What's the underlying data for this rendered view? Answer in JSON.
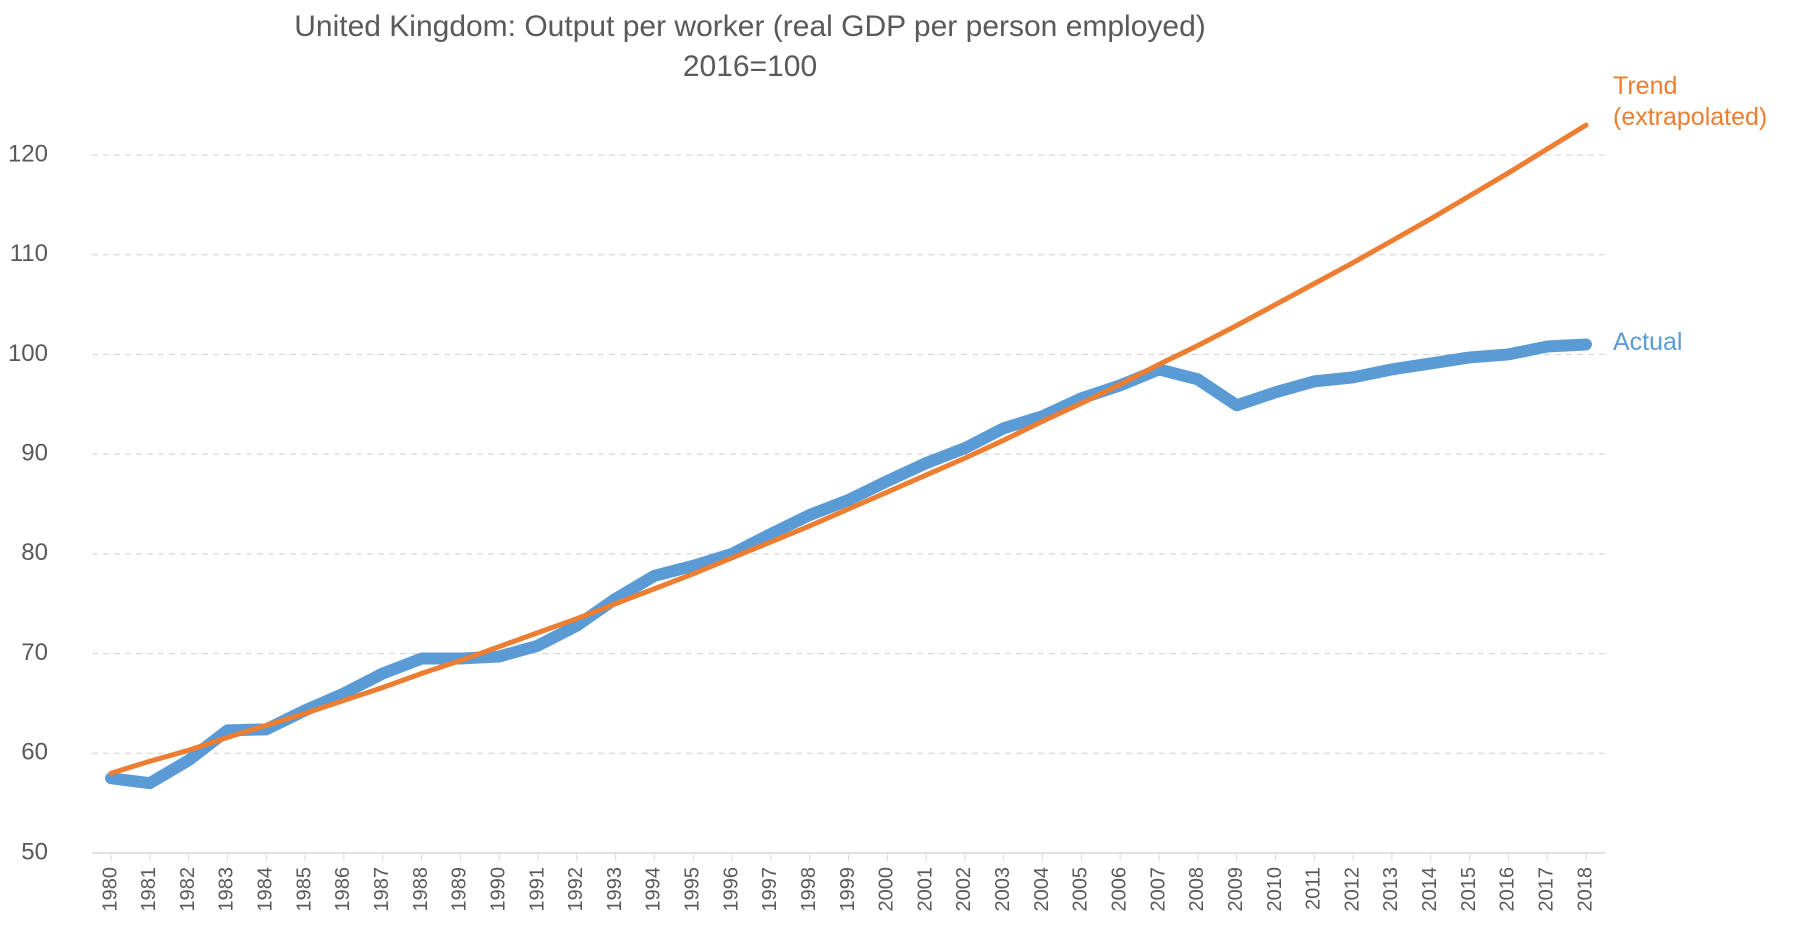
{
  "chart_data": {
    "type": "line",
    "title": "United Kingdom: Output per worker (real GDP per person employed)",
    "subtitle": "2016=100",
    "categories": [
      "1980",
      "1981",
      "1982",
      "1983",
      "1984",
      "1985",
      "1986",
      "1987",
      "1988",
      "1989",
      "1990",
      "1991",
      "1992",
      "1993",
      "1994",
      "1995",
      "1996",
      "1997",
      "1998",
      "1999",
      "2000",
      "2001",
      "2002",
      "2003",
      "2004",
      "2005",
      "2006",
      "2007",
      "2008",
      "2009",
      "2010",
      "2011",
      "2012",
      "2013",
      "2014",
      "2015",
      "2016",
      "2017",
      "2018"
    ],
    "series": [
      {
        "name": "Actual",
        "color": "#5b9bd5",
        "values": [
          57.5,
          57.0,
          59.3,
          62.3,
          62.4,
          64.3,
          66.0,
          68.0,
          69.5,
          69.5,
          69.7,
          70.8,
          72.8,
          75.5,
          77.8,
          78.8,
          80.0,
          82.0,
          83.9,
          85.4,
          87.3,
          89.1,
          90.6,
          92.6,
          93.8,
          95.6,
          96.9,
          98.5,
          97.5,
          94.9,
          96.2,
          97.3,
          97.7,
          98.5,
          99.1,
          99.7,
          100.0,
          100.8,
          101.0
        ]
      },
      {
        "name": "Trend (extrapolated)",
        "color": "#ed7d31",
        "values": [
          58.0,
          59.2,
          60.3,
          61.6,
          62.8,
          64.0,
          65.3,
          66.6,
          68.0,
          69.3,
          70.7,
          72.1,
          73.5,
          75.0,
          76.5,
          78.0,
          79.6,
          81.2,
          82.8,
          84.5,
          86.2,
          87.9,
          89.6,
          91.4,
          93.3,
          95.1,
          97.0,
          99.0,
          100.9,
          102.9,
          105.0,
          107.1,
          109.2,
          111.4,
          113.6,
          115.9,
          118.2,
          120.6,
          123.0
        ]
      }
    ],
    "ylim": [
      50,
      120
    ],
    "yticks": [
      50,
      60,
      70,
      80,
      90,
      100,
      110,
      120
    ],
    "grid": true
  }
}
